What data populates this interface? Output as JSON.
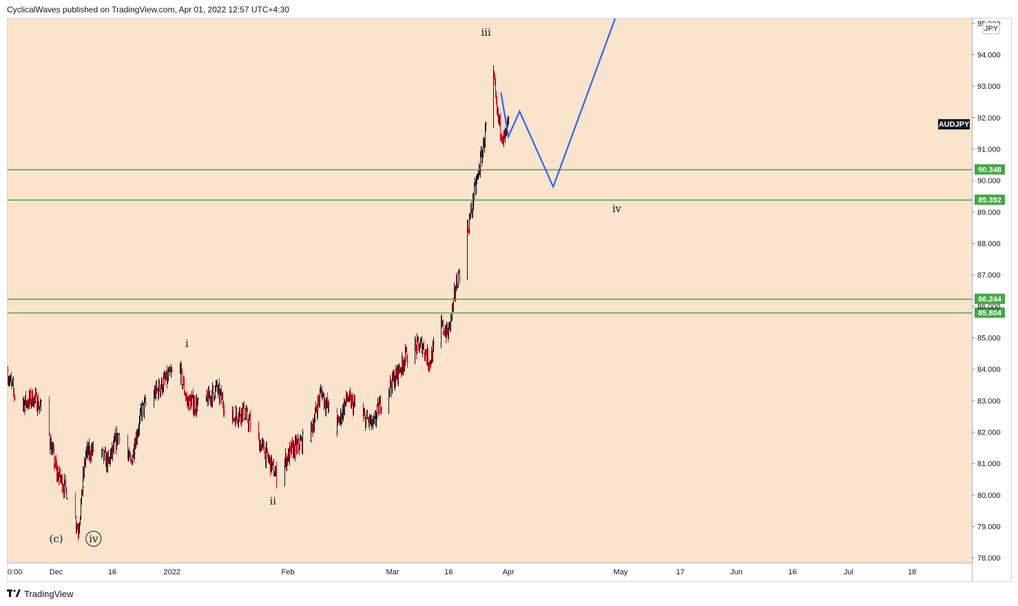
{
  "header": {
    "publisher_line": "CyclicalWaves published on TradingView.com, Apr 01, 2022 12:57 UTC+4:30"
  },
  "footer": {
    "brand": "TradingView",
    "logo_icon": "tradingview-logo-icon"
  },
  "colors": {
    "plot_background": "#fbe4cc",
    "candle_up": "#131722",
    "candle_down": "#e3001b",
    "level_line": "#43a843",
    "level_badge": "#43a843",
    "projection": "#2962ff",
    "symbol_badge": "#131722"
  },
  "chart_data": {
    "type": "candlestick",
    "symbol": "AUDJPY",
    "currency_badge": "JPY",
    "y_axis": {
      "range": [
        77.85,
        95.15
      ],
      "ticks": [
        "95.000",
        "94.000",
        "93.000",
        "92.000",
        "91.000",
        "90.000",
        "89.000",
        "88.000",
        "87.000",
        "86.000",
        "85.000",
        "84.000",
        "83.000",
        "82.000",
        "81.000",
        "80.000",
        "79.000",
        "78.000"
      ]
    },
    "x_axis": {
      "range": [
        "2021-11-18",
        "2022-08-03"
      ],
      "ticks": [
        {
          "date": "2021-11-18",
          "label": "0:00"
        },
        {
          "date": "2021-12-01",
          "label": "Dec"
        },
        {
          "date": "2021-12-16",
          "label": "16"
        },
        {
          "date": "2022-01-01",
          "label": "2022"
        },
        {
          "date": "2022-02-01",
          "label": "Feb"
        },
        {
          "date": "2022-03-01",
          "label": "Mar"
        },
        {
          "date": "2022-03-16",
          "label": "16"
        },
        {
          "date": "2022-04-01",
          "label": "Apr"
        },
        {
          "date": "2022-05-01",
          "label": "May"
        },
        {
          "date": "2022-05-17",
          "label": "17"
        },
        {
          "date": "2022-06-01",
          "label": "Jun"
        },
        {
          "date": "2022-06-16",
          "label": "16"
        },
        {
          "date": "2022-07-01",
          "label": "Jul"
        },
        {
          "date": "2022-07-18",
          "label": "18"
        }
      ]
    },
    "price_path": [
      {
        "date": "2021-11-18",
        "price": 83.9
      },
      {
        "date": "2021-11-21",
        "price": 82.8
      },
      {
        "date": "2021-11-25",
        "price": 83.1
      },
      {
        "date": "2021-11-28",
        "price": 82.6
      },
      {
        "date": "2021-12-01",
        "price": 80.8
      },
      {
        "date": "2021-12-04",
        "price": 80.1
      },
      {
        "date": "2021-12-06",
        "price": 79.3
      },
      {
        "date": "2021-12-07",
        "price": 78.9
      },
      {
        "date": "2021-12-09",
        "price": 81.3
      },
      {
        "date": "2021-12-12",
        "price": 81.5
      },
      {
        "date": "2021-12-15",
        "price": 81.0
      },
      {
        "date": "2021-12-18",
        "price": 82.0
      },
      {
        "date": "2021-12-21",
        "price": 81.0
      },
      {
        "date": "2021-12-24",
        "price": 82.7
      },
      {
        "date": "2021-12-30",
        "price": 83.6
      },
      {
        "date": "2022-01-03",
        "price": 84.1
      },
      {
        "date": "2022-01-05",
        "price": 83.0
      },
      {
        "date": "2022-01-09",
        "price": 82.8
      },
      {
        "date": "2022-01-13",
        "price": 83.4
      },
      {
        "date": "2022-01-17",
        "price": 82.4
      },
      {
        "date": "2022-01-20",
        "price": 82.7
      },
      {
        "date": "2022-01-24",
        "price": 81.8
      },
      {
        "date": "2022-01-27",
        "price": 81.1
      },
      {
        "date": "2022-01-29",
        "price": 80.6
      },
      {
        "date": "2022-02-02",
        "price": 81.4
      },
      {
        "date": "2022-02-07",
        "price": 81.9
      },
      {
        "date": "2022-02-10",
        "price": 83.3
      },
      {
        "date": "2022-02-14",
        "price": 82.1
      },
      {
        "date": "2022-02-17",
        "price": 83.1
      },
      {
        "date": "2022-02-21",
        "price": 82.5
      },
      {
        "date": "2022-02-24",
        "price": 82.2
      },
      {
        "date": "2022-02-26",
        "price": 83.0
      },
      {
        "date": "2022-03-02",
        "price": 83.8
      },
      {
        "date": "2022-03-05",
        "price": 84.5
      },
      {
        "date": "2022-03-09",
        "price": 84.8
      },
      {
        "date": "2022-03-11",
        "price": 84.2
      },
      {
        "date": "2022-03-14",
        "price": 85.4
      },
      {
        "date": "2022-03-16",
        "price": 85.1
      },
      {
        "date": "2022-03-18",
        "price": 86.6
      },
      {
        "date": "2022-03-21",
        "price": 88.3
      },
      {
        "date": "2022-03-23",
        "price": 89.6
      },
      {
        "date": "2022-03-25",
        "price": 90.8
      },
      {
        "date": "2022-03-28",
        "price": 93.5
      },
      {
        "date": "2022-03-29",
        "price": 92.1
      },
      {
        "date": "2022-03-31",
        "price": 91.3
      },
      {
        "date": "2022-04-01",
        "price": 91.8
      }
    ],
    "horizontal_levels": [
      90.348,
      89.392,
      86.244,
      85.804
    ],
    "level_labels": [
      "90.348",
      "89.392",
      "86.244",
      "85.804"
    ],
    "projection_path": [
      {
        "date": "2022-03-30",
        "price": 92.8
      },
      {
        "date": "2022-04-01",
        "price": 91.4
      },
      {
        "date": "2022-04-04",
        "price": 92.2
      },
      {
        "date": "2022-04-13",
        "price": 89.8
      },
      {
        "date": "2022-04-30",
        "price": 95.3
      }
    ],
    "wave_labels": [
      {
        "text": "(c)",
        "date": "2021-12-01",
        "price": 78.5,
        "circled": false
      },
      {
        "text": "iv",
        "date": "2021-12-11",
        "price": 78.5,
        "circled": true
      },
      {
        "text": "i",
        "date": "2022-01-05",
        "price": 84.7,
        "circled": false
      },
      {
        "text": "ii",
        "date": "2022-01-28",
        "price": 79.7,
        "circled": false
      },
      {
        "text": "iii",
        "date": "2022-03-26",
        "price": 94.6,
        "circled": false
      },
      {
        "text": "iv",
        "date": "2022-04-30",
        "price": 89.0,
        "circled": false
      }
    ]
  }
}
